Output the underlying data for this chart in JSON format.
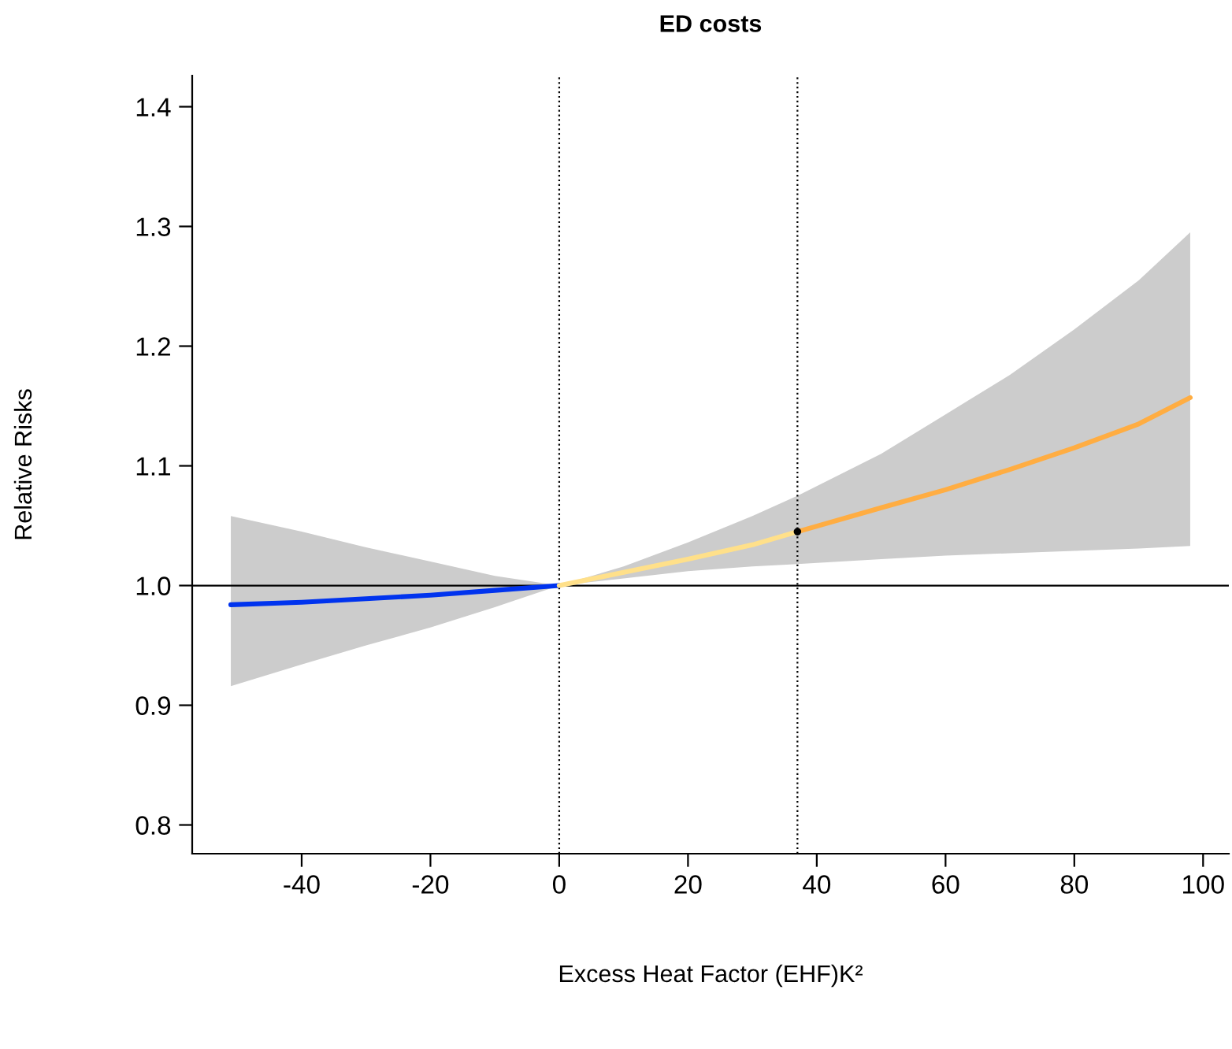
{
  "chart_data": {
    "type": "line",
    "title": "ED costs",
    "xlabel": "Excess Heat Factor (EHF)K²",
    "ylabel": "Relative Risks",
    "xlim": [
      -57,
      104
    ],
    "ylim": [
      0.776,
      1.426
    ],
    "xticks": [
      -40,
      -20,
      0,
      20,
      40,
      60,
      80,
      100
    ],
    "yticks": [
      0.8,
      0.9,
      {
        "value": 1,
        "label": "1.0"
      },
      1.1,
      1.2,
      1.3,
      1.4
    ],
    "grid": false,
    "marker": "none",
    "line_style": "solid",
    "series": [
      {
        "color": "#0033ee",
        "x": [
          -51,
          -40,
          -30,
          -20,
          -10,
          0
        ],
        "values": [
          0.984,
          0.986,
          0.989,
          0.992,
          0.996,
          1.0
        ],
        "lower": [
          0.916,
          0.934,
          0.95,
          0.965,
          0.982,
          1.0
        ],
        "upper": [
          1.058,
          1.045,
          1.032,
          1.02,
          1.008,
          1.0
        ]
      },
      {
        "color": "#ffe08a",
        "x": [
          0,
          10,
          20,
          30,
          37
        ],
        "values": [
          1.0,
          1.011,
          1.022,
          1.034,
          1.045
        ],
        "lower": [
          1.0,
          1.006,
          1.012,
          1.016,
          1.018
        ],
        "upper": [
          1.0,
          1.016,
          1.036,
          1.058,
          1.075
        ]
      },
      {
        "color": "#ffad42",
        "x": [
          37,
          50,
          60,
          70,
          80,
          90,
          98
        ],
        "values": [
          1.045,
          1.065,
          1.08,
          1.097,
          1.115,
          1.135,
          1.157
        ],
        "lower": [
          1.018,
          1.022,
          1.025,
          1.027,
          1.029,
          1.031,
          1.033
        ],
        "upper": [
          1.075,
          1.11,
          1.143,
          1.176,
          1.214,
          1.255,
          1.295
        ]
      },
      {
        "type": "scatter",
        "color": "#000000",
        "x": [
          37
        ],
        "values": [
          1.045
        ]
      }
    ],
    "ref_lines": [
      {
        "axis": "x",
        "value": 0,
        "color": "#000000",
        "line_style": "dotted"
      },
      {
        "axis": "x",
        "value": 37,
        "color": "#000000",
        "line_style": "dotted"
      },
      {
        "axis": "y",
        "value": 1.0,
        "color": "#000000",
        "line_style": "solid"
      }
    ]
  }
}
